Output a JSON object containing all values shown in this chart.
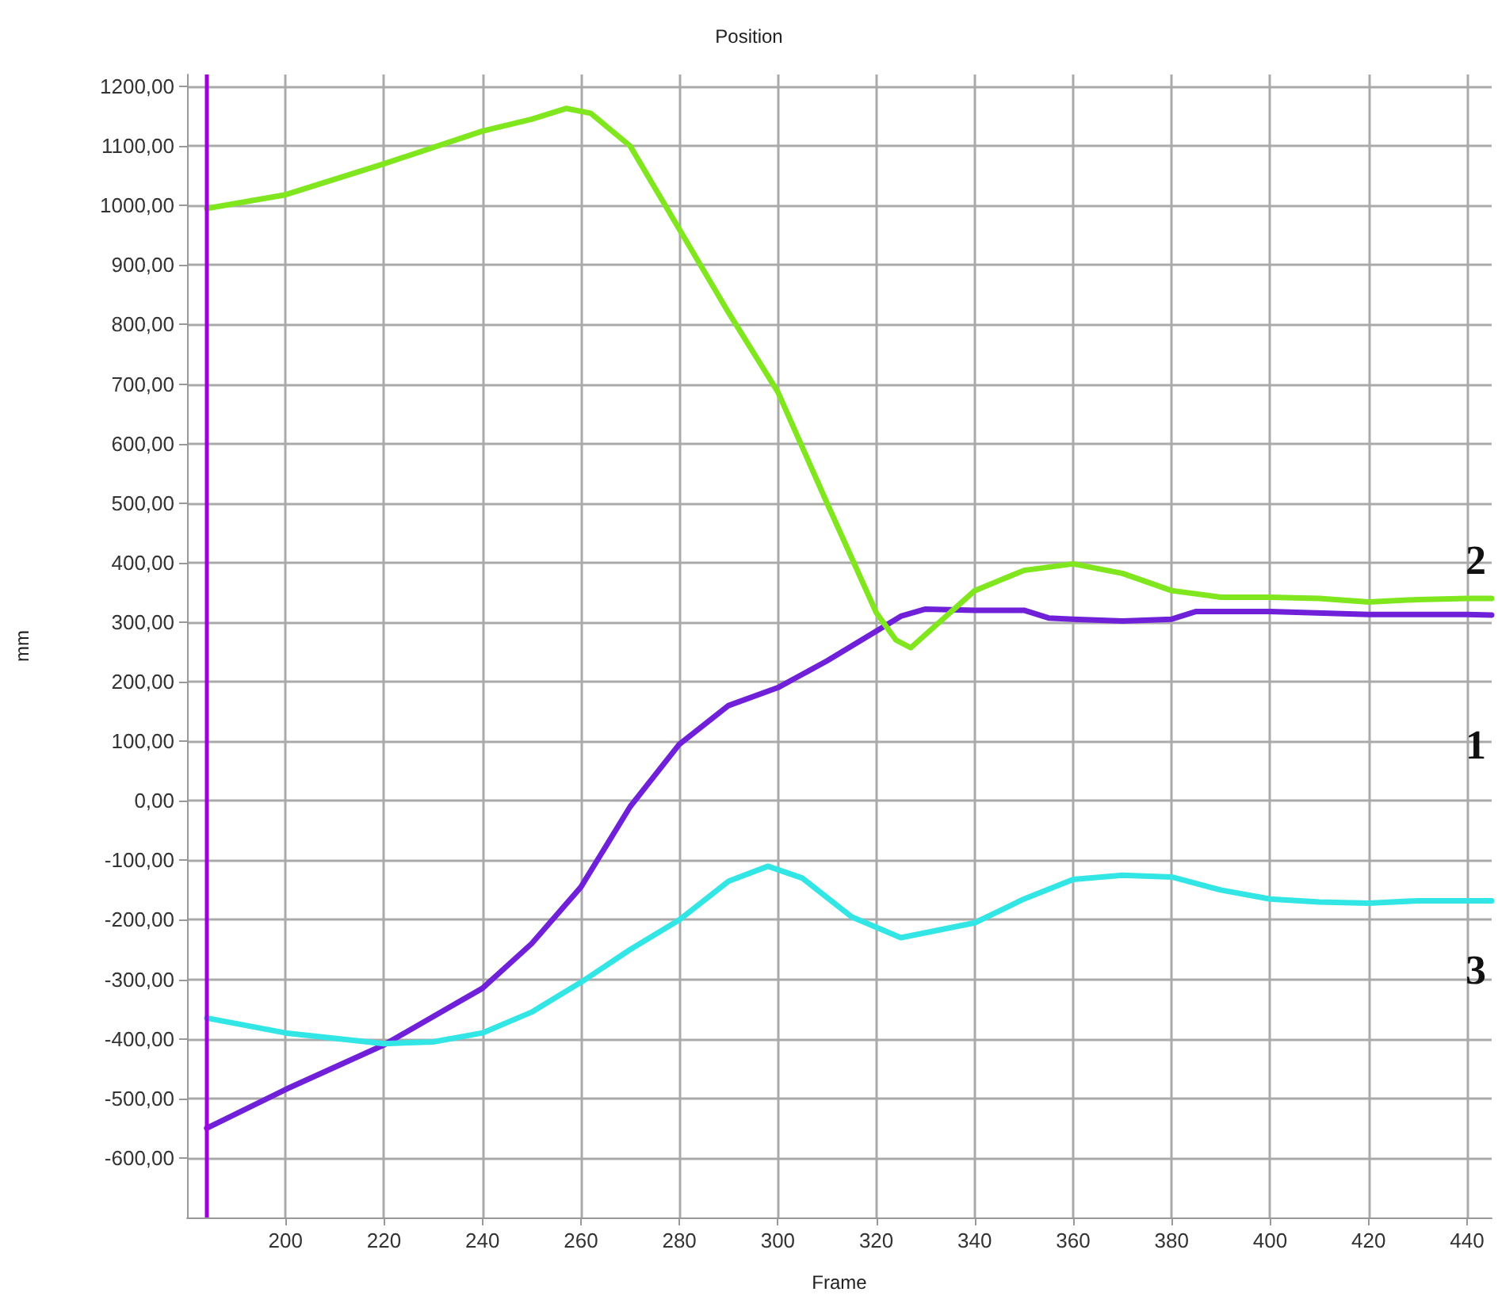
{
  "chart_data": {
    "type": "line",
    "title": "Position",
    "xlabel": "Frame",
    "ylabel": "mm",
    "xlim": [
      180,
      445
    ],
    "ylim": [
      -700,
      1220
    ],
    "xticks": [
      200,
      220,
      240,
      260,
      280,
      300,
      320,
      340,
      360,
      380,
      400,
      420,
      440
    ],
    "yticks": [
      {
        "value": -600,
        "label": "-600,00"
      },
      {
        "value": -500,
        "label": "-500,00"
      },
      {
        "value": -400,
        "label": "-400,00"
      },
      {
        "value": -300,
        "label": "-300,00"
      },
      {
        "value": -200,
        "label": "-200,00"
      },
      {
        "value": -100,
        "label": "-100,00"
      },
      {
        "value": 0,
        "label": "0,00"
      },
      {
        "value": 100,
        "label": "100,00"
      },
      {
        "value": 200,
        "label": "200,00"
      },
      {
        "value": 300,
        "label": "300,00"
      },
      {
        "value": 400,
        "label": "400,00"
      },
      {
        "value": 500,
        "label": "500,00"
      },
      {
        "value": 600,
        "label": "600,00"
      },
      {
        "value": 700,
        "label": "700,00"
      },
      {
        "value": 800,
        "label": "800,00"
      },
      {
        "value": 900,
        "label": "900,00"
      },
      {
        "value": 1000,
        "label": "1000,00"
      },
      {
        "value": 1100,
        "label": "1100,00"
      },
      {
        "value": 1200,
        "label": "1200,00"
      }
    ],
    "grid": true,
    "legend": false,
    "marker": "none",
    "line_style": "solid",
    "ref_lines": [
      {
        "axis": "x",
        "value": 184,
        "color": "#a000e0"
      }
    ],
    "series": [
      {
        "name": "1",
        "color": "#7020d8",
        "x": [
          184,
          200,
          220,
          240,
          250,
          260,
          270,
          280,
          290,
          300,
          310,
          320,
          325,
          330,
          340,
          350,
          355,
          360,
          370,
          380,
          385,
          400,
          420,
          440,
          445
        ],
        "values": [
          -550,
          -485,
          -410,
          -315,
          -240,
          -145,
          -10,
          95,
          160,
          190,
          235,
          285,
          310,
          322,
          320,
          320,
          307,
          305,
          302,
          305,
          318,
          318,
          313,
          313,
          312
        ]
      },
      {
        "name": "2",
        "color": "#80e61e",
        "x": [
          184,
          200,
          220,
          240,
          250,
          257,
          262,
          270,
          280,
          290,
          300,
          310,
          320,
          324,
          327,
          340,
          350,
          360,
          370,
          380,
          390,
          400,
          410,
          420,
          430,
          440,
          445
        ],
        "values": [
          995,
          1018,
          1070,
          1125,
          1145,
          1163,
          1155,
          1100,
          960,
          820,
          687,
          500,
          316,
          270,
          257,
          353,
          387,
          398,
          382,
          353,
          342,
          342,
          340,
          334,
          338,
          340,
          340
        ]
      },
      {
        "name": "3",
        "color": "#33e6e6",
        "x": [
          184,
          200,
          220,
          230,
          240,
          250,
          260,
          270,
          280,
          290,
          298,
          305,
          315,
          325,
          340,
          350,
          360,
          370,
          380,
          390,
          400,
          410,
          420,
          430,
          445
        ],
        "values": [
          -365,
          -390,
          -408,
          -405,
          -390,
          -355,
          -305,
          -250,
          -200,
          -135,
          -110,
          -130,
          -195,
          -230,
          -205,
          -165,
          -132,
          -125,
          -128,
          -150,
          -165,
          -170,
          -172,
          -168,
          -168
        ]
      }
    ]
  }
}
